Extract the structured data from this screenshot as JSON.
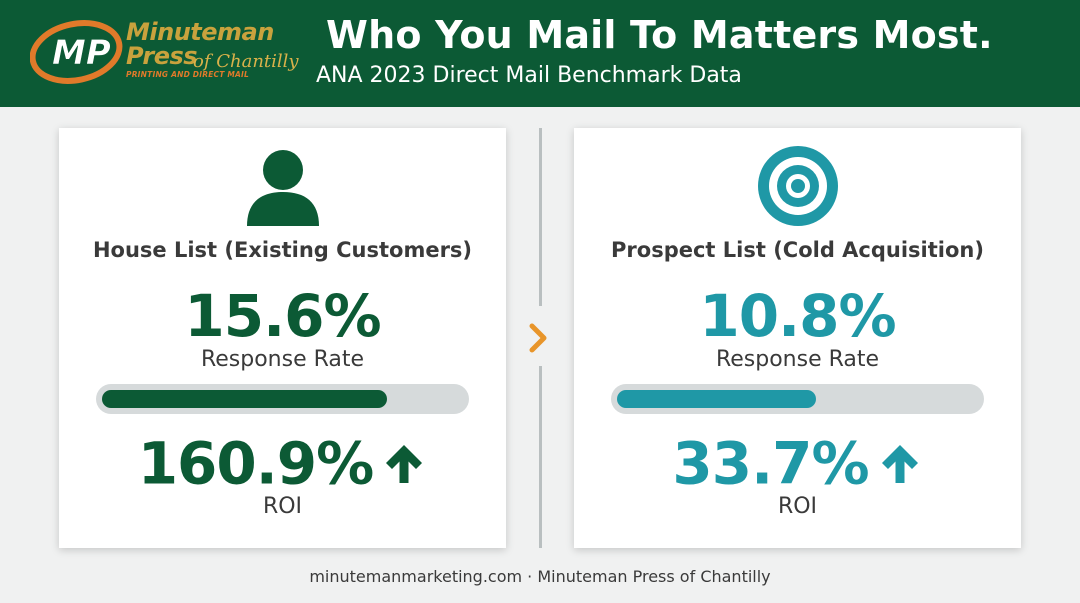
{
  "header": {
    "title": "Who You Mail To Matters Most.",
    "subtitle": "ANA 2023 Direct Mail Benchmark Data",
    "background_color": "#0c5a35",
    "logo": {
      "line1": "Minuteman",
      "line2": "Press",
      "of_location": "of Chantilly",
      "tagline": "PRINTING AND DIRECT MAIL",
      "monogram": "MP"
    }
  },
  "cards": [
    {
      "icon": "person-icon",
      "heading": "House List (Existing Customers)",
      "response_rate_value": "15.6%",
      "response_rate_label": "Response Rate",
      "response_rate_fill_fraction": 0.79,
      "roi_value": "160.9%",
      "roi_label": "ROI",
      "roi_trend_icon": "arrow-up-icon",
      "accent_color": "#0c5a35"
    },
    {
      "icon": "target-icon",
      "heading": "Prospect List (Cold Acquisition)",
      "response_rate_value": "10.8%",
      "response_rate_label": "Response Rate",
      "response_rate_fill_fraction": 0.55,
      "roi_value": "33.7%",
      "roi_label": "ROI",
      "roi_trend_icon": "arrow-up-icon",
      "accent_color": "#1f98a6"
    }
  ],
  "divider": {
    "icon": "chevron-right-icon",
    "color": "#e8952a"
  },
  "footer": {
    "text": "minutemanmarketing.com · Minuteman Press of Chantilly"
  }
}
